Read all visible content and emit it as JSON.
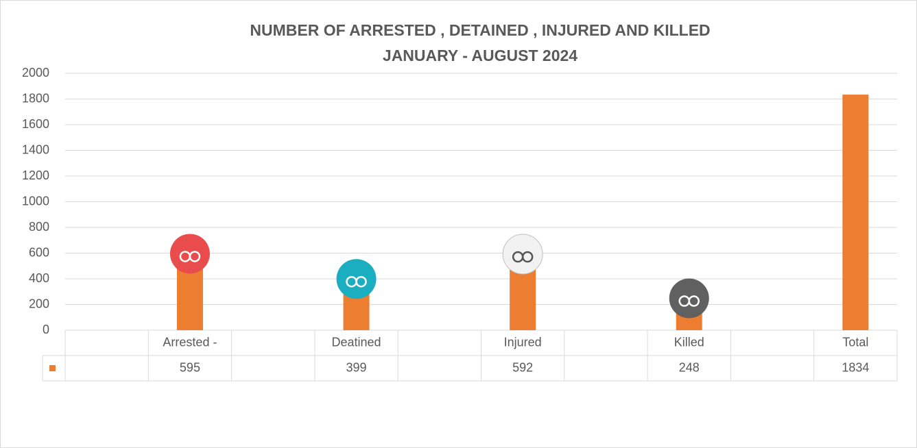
{
  "chart_data": {
    "type": "bar",
    "title": "NUMBER OF ARRESTED , DETAINED , INJURED AND KILLED",
    "subtitle": "JANUARY - AUGUST 2024",
    "categories": [
      null,
      "Arrested -",
      null,
      "Deatined",
      null,
      "Injured",
      null,
      "Killed",
      null,
      "Total"
    ],
    "values": [
      null,
      595,
      null,
      399,
      null,
      592,
      null,
      248,
      null,
      1834
    ],
    "color": "#ed7d31",
    "ylim": [
      0,
      2000
    ],
    "yticks": [
      0,
      200,
      400,
      600,
      800,
      1000,
      1200,
      1400,
      1600,
      1800,
      2000
    ],
    "grid": true
  }
}
